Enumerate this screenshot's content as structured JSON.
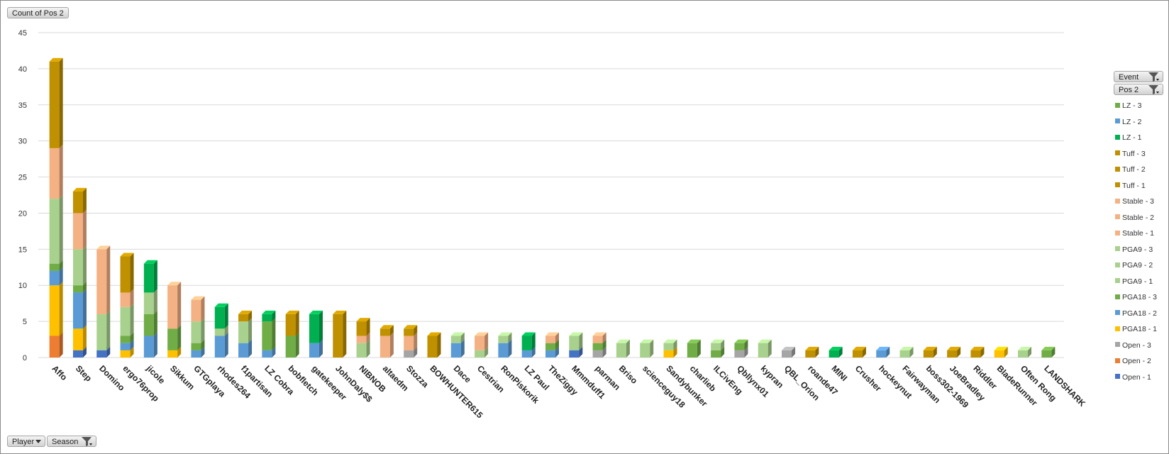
{
  "value_field": "Count of Pos 2",
  "filters": {
    "event_label": "Event",
    "pos_label": "Pos 2",
    "player_label": "Player",
    "season_label": "Season"
  },
  "chart_data": {
    "type": "bar",
    "stacked": true,
    "three_d": true,
    "title": "",
    "xlabel": "",
    "ylabel": "",
    "ylim": [
      0,
      45
    ],
    "yticks": [
      0,
      5,
      10,
      15,
      20,
      25,
      30,
      35,
      40,
      45
    ],
    "grid": true,
    "legend_position": "right",
    "legend_title": "",
    "categories": [
      "Affo",
      "Step",
      "Domino",
      "ergo76prop",
      "jicole",
      "Sikkum",
      "GTGplaya",
      "rhodes264",
      "f1partisan",
      "LZ Cobra",
      "bobfletch",
      "gatekeeper",
      "JohnDaly$$",
      "NIBNOB",
      "altaedm",
      "Stozza",
      "BOWHUNTER615",
      "Dace",
      "Cestrian",
      "RonPiskorik",
      "LZ Paul",
      "TheZiggy",
      "Mmmduff1",
      "parman",
      "Briso",
      "scienceguy18",
      "Sandybunker",
      "charlieb",
      "ILCivEng",
      "Qbllynx01",
      "kypran",
      "QBL_Orion",
      "roande47",
      "MINI",
      "Crusher",
      "hockeynut",
      "Fairwayman",
      "boss302-1969",
      "JoeBradley",
      "Riddler",
      "BladeRunner",
      "Often Rong",
      "LANDSHARK"
    ],
    "series": [
      {
        "name": "Open - 1",
        "color": "#4472c4",
        "values": [
          0,
          1,
          1,
          0,
          0,
          0,
          0,
          0,
          0,
          0,
          0,
          0,
          0,
          0,
          0,
          0,
          0,
          0,
          0,
          0,
          0,
          0,
          1,
          0,
          0,
          0,
          0,
          0,
          0,
          0,
          0,
          0,
          0,
          0,
          0,
          0,
          0,
          0,
          0,
          0,
          0,
          0,
          0
        ]
      },
      {
        "name": "Open - 2",
        "color": "#ed7d31",
        "values": [
          3,
          0,
          0,
          0,
          0,
          0,
          0,
          0,
          0,
          0,
          0,
          0,
          0,
          0,
          0,
          0,
          0,
          0,
          0,
          0,
          0,
          0,
          0,
          0,
          0,
          0,
          0,
          0,
          0,
          0,
          0,
          0,
          0,
          0,
          0,
          0,
          0,
          0,
          0,
          0,
          0,
          0,
          0
        ]
      },
      {
        "name": "Open - 3",
        "color": "#a5a5a5",
        "values": [
          0,
          0,
          0,
          0,
          0,
          0,
          0,
          0,
          0,
          0,
          0,
          0,
          0,
          0,
          0,
          1,
          0,
          0,
          0,
          0,
          0,
          0,
          0,
          1,
          0,
          0,
          0,
          0,
          0,
          1,
          0,
          1,
          0,
          0,
          0,
          0,
          0,
          0,
          0,
          0,
          0,
          0,
          0
        ]
      },
      {
        "name": "PGA18 - 1",
        "color": "#ffc000",
        "values": [
          7,
          3,
          0,
          1,
          0,
          1,
          0,
          0,
          0,
          0,
          0,
          0,
          0,
          0,
          0,
          0,
          0,
          0,
          0,
          0,
          0,
          0,
          0,
          0,
          0,
          0,
          1,
          0,
          0,
          0,
          0,
          0,
          0,
          0,
          0,
          0,
          0,
          0,
          0,
          0,
          1,
          0,
          0
        ]
      },
      {
        "name": "PGA18 - 2",
        "color": "#5b9bd5",
        "values": [
          2,
          5,
          0,
          1,
          3,
          0,
          1,
          3,
          2,
          1,
          0,
          2,
          0,
          0,
          0,
          0,
          0,
          2,
          0,
          2,
          1,
          1,
          0,
          0,
          0,
          0,
          0,
          0,
          0,
          0,
          0,
          0,
          0,
          0,
          0,
          1,
          0,
          0,
          0,
          0,
          0,
          0,
          0
        ]
      },
      {
        "name": "PGA18 - 3",
        "color": "#70ad47",
        "values": [
          1,
          1,
          0,
          1,
          3,
          3,
          1,
          0,
          0,
          4,
          3,
          0,
          0,
          0,
          0,
          0,
          0,
          0,
          0,
          0,
          0,
          1,
          0,
          1,
          0,
          0,
          0,
          2,
          1,
          1,
          0,
          0,
          0,
          0,
          0,
          0,
          0,
          0,
          0,
          0,
          0,
          0,
          1
        ]
      },
      {
        "name": "PGA9 - 1",
        "color": "#a9d18e",
        "values": [
          9,
          5,
          5,
          4,
          3,
          0,
          3,
          1,
          3,
          0,
          0,
          0,
          0,
          2,
          0,
          0,
          0,
          1,
          1,
          1,
          0,
          0,
          2,
          0,
          2,
          2,
          1,
          0,
          1,
          0,
          2,
          0,
          0,
          0,
          0,
          0,
          1,
          0,
          0,
          0,
          0,
          1,
          0
        ]
      },
      {
        "name": "PGA9 - 2",
        "color": "#a9d18e",
        "values": [
          0,
          0,
          0,
          0,
          0,
          0,
          0,
          0,
          0,
          0,
          0,
          0,
          0,
          0,
          0,
          0,
          0,
          0,
          0,
          0,
          0,
          0,
          0,
          0,
          0,
          0,
          0,
          0,
          0,
          0,
          0,
          0,
          0,
          0,
          0,
          0,
          0,
          0,
          0,
          0,
          0,
          0,
          0
        ]
      },
      {
        "name": "PGA9 - 3",
        "color": "#a9d18e",
        "values": [
          0,
          0,
          0,
          0,
          0,
          0,
          0,
          0,
          0,
          0,
          0,
          0,
          0,
          0,
          0,
          0,
          0,
          0,
          0,
          0,
          0,
          0,
          0,
          0,
          0,
          0,
          0,
          0,
          0,
          0,
          0,
          0,
          0,
          0,
          0,
          0,
          0,
          0,
          0,
          0,
          0,
          0,
          0
        ]
      },
      {
        "name": "Stable - 1",
        "color": "#f4b183",
        "values": [
          7,
          5,
          9,
          2,
          0,
          6,
          3,
          0,
          0,
          0,
          0,
          0,
          0,
          1,
          3,
          2,
          0,
          0,
          2,
          0,
          0,
          1,
          0,
          1,
          0,
          0,
          0,
          0,
          0,
          0,
          0,
          0,
          0,
          0,
          0,
          0,
          0,
          0,
          0,
          0,
          0,
          0,
          0
        ]
      },
      {
        "name": "Stable - 2",
        "color": "#f4b183",
        "values": [
          0,
          0,
          0,
          0,
          0,
          0,
          0,
          0,
          0,
          0,
          0,
          0,
          0,
          0,
          0,
          0,
          0,
          0,
          0,
          0,
          0,
          0,
          0,
          0,
          0,
          0,
          0,
          0,
          0,
          0,
          0,
          0,
          0,
          0,
          0,
          0,
          0,
          0,
          0,
          0,
          0,
          0,
          0
        ]
      },
      {
        "name": "Stable - 3",
        "color": "#f4b183",
        "values": [
          0,
          0,
          0,
          0,
          0,
          0,
          0,
          0,
          0,
          0,
          0,
          0,
          0,
          0,
          0,
          0,
          0,
          0,
          0,
          0,
          0,
          0,
          0,
          0,
          0,
          0,
          0,
          0,
          0,
          0,
          0,
          0,
          0,
          0,
          0,
          0,
          0,
          0,
          0,
          0,
          0,
          0,
          0
        ]
      },
      {
        "name": "Tuff - 1",
        "color": "#bf9000",
        "values": [
          12,
          3,
          0,
          5,
          0,
          0,
          0,
          0,
          1,
          0,
          3,
          0,
          6,
          2,
          1,
          1,
          3,
          0,
          0,
          0,
          0,
          0,
          0,
          0,
          0,
          0,
          0,
          0,
          0,
          0,
          0,
          0,
          1,
          0,
          1,
          0,
          0,
          1,
          1,
          1,
          0,
          0,
          0
        ]
      },
      {
        "name": "Tuff - 2",
        "color": "#bf9000",
        "values": [
          0,
          0,
          0,
          0,
          0,
          0,
          0,
          0,
          0,
          0,
          0,
          0,
          0,
          0,
          0,
          0,
          0,
          0,
          0,
          0,
          0,
          0,
          0,
          0,
          0,
          0,
          0,
          0,
          0,
          0,
          0,
          0,
          0,
          0,
          0,
          0,
          0,
          0,
          0,
          0,
          0,
          0,
          0
        ]
      },
      {
        "name": "Tuff - 3",
        "color": "#bf9000",
        "values": [
          0,
          0,
          0,
          0,
          0,
          0,
          0,
          0,
          0,
          0,
          0,
          0,
          0,
          0,
          0,
          0,
          0,
          0,
          0,
          0,
          0,
          0,
          0,
          0,
          0,
          0,
          0,
          0,
          0,
          0,
          0,
          0,
          0,
          0,
          0,
          0,
          0,
          0,
          0,
          0,
          0,
          0,
          0
        ]
      },
      {
        "name": "LZ - 1",
        "color": "#00b050",
        "values": [
          0,
          0,
          0,
          0,
          4,
          0,
          0,
          3,
          0,
          1,
          0,
          4,
          0,
          0,
          0,
          0,
          0,
          0,
          0,
          0,
          2,
          0,
          0,
          0,
          0,
          0,
          0,
          0,
          0,
          0,
          0,
          0,
          0,
          1,
          0,
          0,
          0,
          0,
          0,
          0,
          0,
          0,
          0
        ]
      },
      {
        "name": "LZ - 2",
        "color": "#5b9bd5",
        "values": [
          0,
          0,
          0,
          0,
          0,
          0,
          0,
          0,
          0,
          0,
          0,
          0,
          0,
          0,
          0,
          0,
          0,
          0,
          0,
          0,
          0,
          0,
          0,
          0,
          0,
          0,
          0,
          0,
          0,
          0,
          0,
          0,
          0,
          0,
          0,
          0,
          0,
          0,
          0,
          0,
          0,
          0,
          0
        ]
      },
      {
        "name": "LZ - 3",
        "color": "#70ad47",
        "values": [
          0,
          0,
          0,
          0,
          0,
          0,
          0,
          0,
          0,
          0,
          0,
          0,
          0,
          0,
          0,
          0,
          0,
          0,
          0,
          0,
          0,
          0,
          0,
          0,
          0,
          0,
          0,
          0,
          0,
          0,
          0,
          0,
          0,
          0,
          0,
          0,
          0,
          0,
          0,
          0,
          0,
          0,
          0
        ]
      }
    ]
  }
}
